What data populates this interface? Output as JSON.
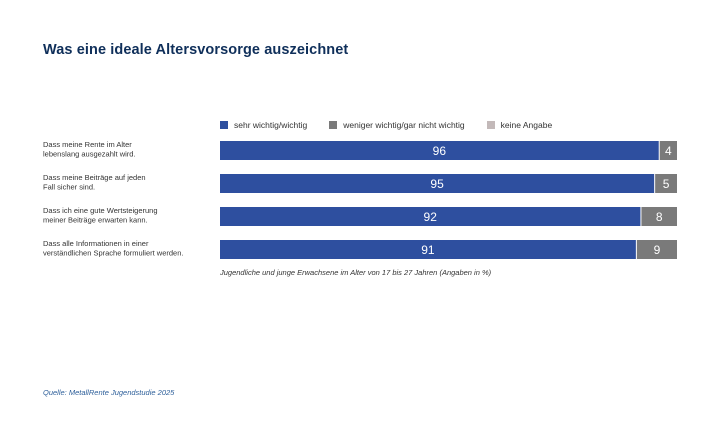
{
  "chart_data": {
    "type": "bar",
    "orientation": "horizontal",
    "stacked": true,
    "title": "Was eine ideale Altersvorsorge auszeichnet",
    "categories": [
      "Dass meine Rente im Alter\nlebenslang ausgezahlt wird.",
      "Dass meine Beiträge auf jeden\nFall sicher sind.",
      "Dass ich eine gute Wertsteigerung\nmeiner Beiträge erwarten kann.",
      "Dass alle Informationen in einer\nverständlichen Sprache formuliert werden."
    ],
    "series": [
      {
        "name": "sehr wichtig/wichtig",
        "values": [
          96,
          95,
          92,
          91
        ],
        "color": "#2e4f9f"
      },
      {
        "name": "weniger wichtig/gar nicht wichtig",
        "values": [
          4,
          5,
          8,
          9
        ],
        "color": "#7a7a7a"
      },
      {
        "name": "keine Angabe",
        "values": [
          0,
          0,
          0,
          0
        ],
        "color": "#c3b9b9"
      }
    ],
    "xlim": [
      0,
      100
    ],
    "legend_position": "top",
    "grid": false,
    "note": "Jugendliche und junge Erwachsene im Alter von 17 bis 27 Jahren (Angaben in %)",
    "source": "Quelle: MetallRente Jugendstudie 2025"
  }
}
